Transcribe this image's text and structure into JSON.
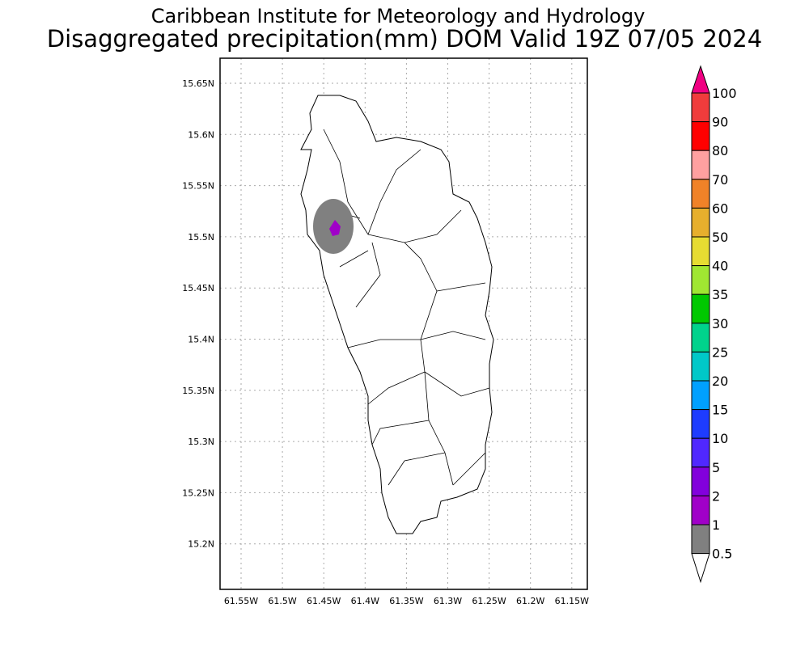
{
  "title_line1": "Caribbean Institute for Meteorology and Hydrology",
  "title_line2": "Disaggregated precipitation(mm) DOM Valid 19Z 07/05 2024",
  "map": {
    "lon_ticks": [
      "61.55W",
      "61.5W",
      "61.45W",
      "61.4W",
      "61.35W",
      "61.3W",
      "61.25W",
      "61.2W",
      "61.15W"
    ],
    "lat_ticks": [
      "15.65N",
      "15.6N",
      "15.55N",
      "15.5N",
      "15.45N",
      "15.4N",
      "15.35N",
      "15.3N",
      "15.25N",
      "15.2N"
    ],
    "precip_features": [
      {
        "level": "0.5-1",
        "color": "#808080",
        "center_lon": -61.445,
        "center_lat": 15.505
      },
      {
        "level": "1-2",
        "color": "#a000c8",
        "center_lon": -61.443,
        "center_lat": 15.507
      }
    ]
  },
  "colorbar": {
    "labels": [
      "100",
      "90",
      "80",
      "70",
      "60",
      "50",
      "40",
      "35",
      "30",
      "25",
      "20",
      "15",
      "10",
      "5",
      "2",
      "1",
      "0.5"
    ],
    "colors": [
      "#f03c3c",
      "#ff0000",
      "#ffa0a0",
      "#f08228",
      "#e6af2d",
      "#e6dc32",
      "#a0e632",
      "#00c800",
      "#00d28c",
      "#00c8c8",
      "#00a0ff",
      "#1e3cff",
      "#5028ff",
      "#8200dc",
      "#a000c8",
      "#808080"
    ],
    "top_arrow_color": "#f00082",
    "bottom_arrow_color": "#ffffff"
  }
}
